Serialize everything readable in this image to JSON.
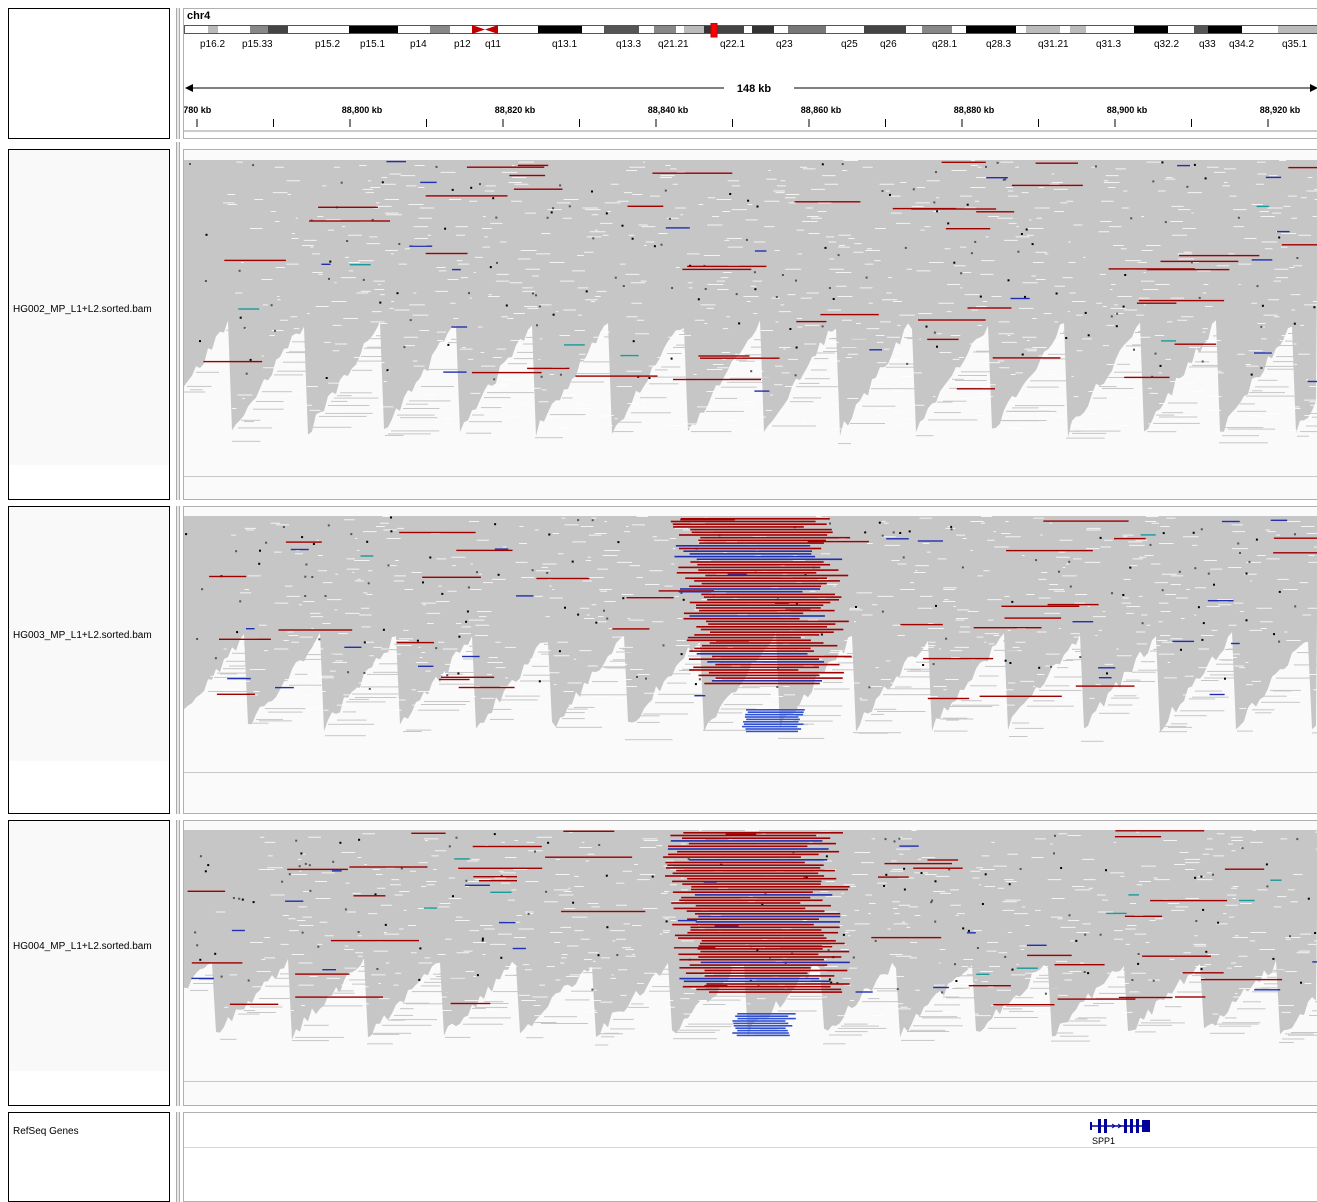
{
  "header": {
    "chromosome": "chr4",
    "span_label": "148 kb",
    "ideogram_bands": [
      "p16.2",
      "p15.33",
      "p15.2",
      "p15.1",
      "p14",
      "p12",
      "q11",
      "q13.1",
      "q13.3",
      "q21.21",
      "q22.1",
      "q23",
      "q25",
      "q26",
      "q28.1",
      "q28.3",
      "q31.21",
      "q31.3",
      "q32.2",
      "q33",
      "q34.2",
      "q35.1"
    ],
    "ruler_ticks": [
      ",780 kb",
      "88,800 kb",
      "88,820 kb",
      "88,840 kb",
      "88,860 kb",
      "88,880 kb",
      "88,900 kb",
      "88,920 kb"
    ]
  },
  "tracks": [
    {
      "name": "HG002_MP_L1+L2.sorted.bam"
    },
    {
      "name": "HG003_MP_L1+L2.sorted.bam"
    },
    {
      "name": "HG004_MP_L1+L2.sorted.bam"
    }
  ],
  "genes_track": {
    "name": "RefSeq Genes",
    "gene_label": "SPP1"
  },
  "colors": {
    "read_gray": "#c6c6c6",
    "deletion_red": "#a00000",
    "insertion_blue": "#2030b0",
    "light_blue": "#3050d0",
    "teal": "#1a9a9a",
    "gene_blue": "#00009a",
    "centromere_red": "#c00000"
  }
}
